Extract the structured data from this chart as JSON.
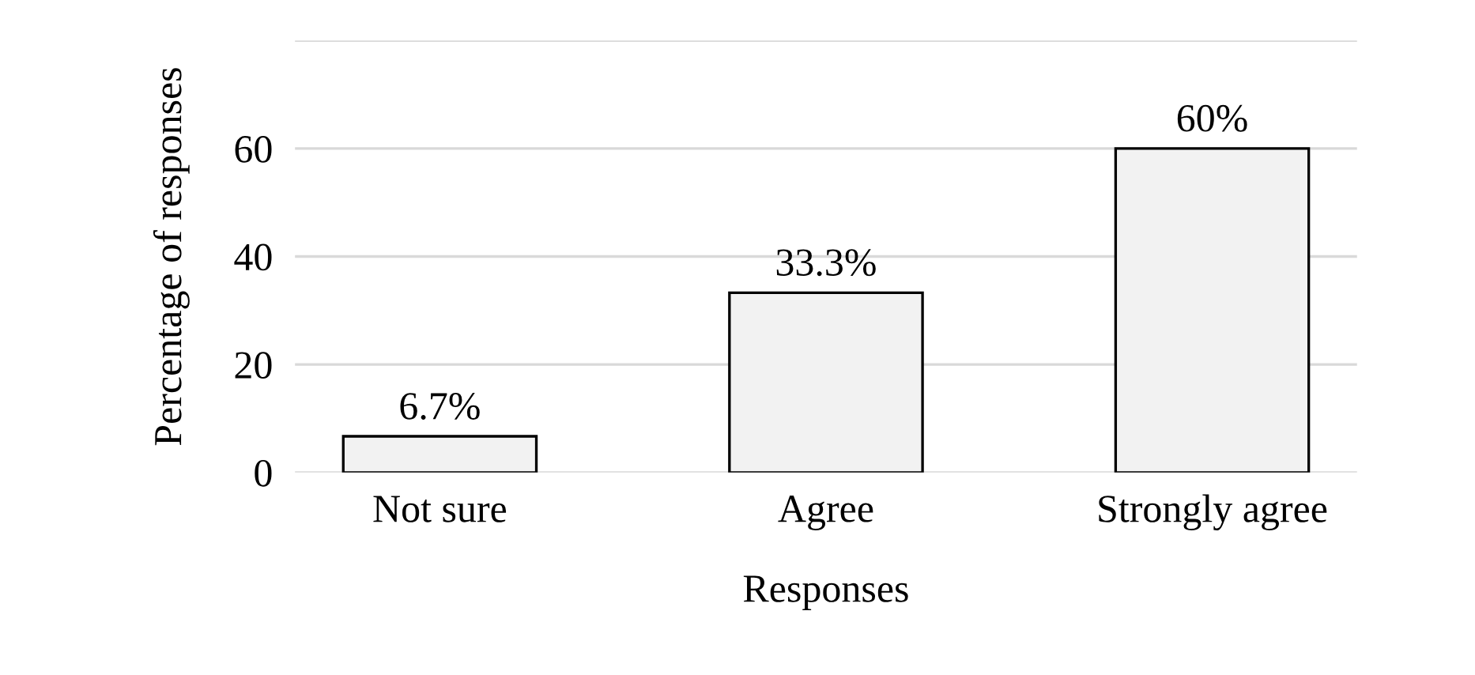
{
  "chart_data": {
    "type": "bar",
    "xlabel": "Responses",
    "ylabel": "Percentage of responses",
    "categories": [
      "Not sure",
      "Agree",
      "Strongly agree"
    ],
    "values": [
      6.7,
      33.3,
      60
    ],
    "value_labels": [
      "6.7%",
      "33.3%",
      "60%"
    ],
    "color": "#f2f2f2",
    "ylim": [
      0,
      80
    ],
    "yticks": [
      0,
      20,
      40,
      60,
      {
        "value": 80,
        "label": null
      }
    ],
    "grid": "y",
    "legend": false
  }
}
